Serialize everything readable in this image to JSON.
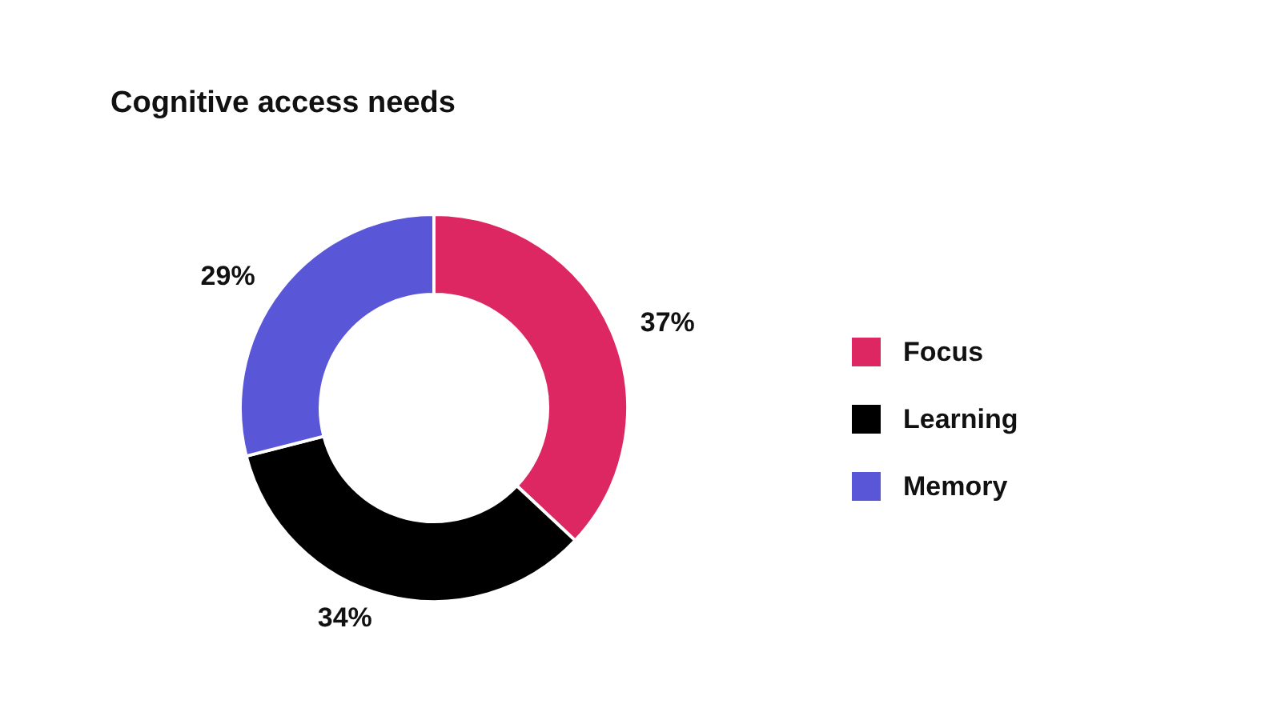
{
  "chart_data": {
    "type": "donut",
    "title": "Cognitive access needs",
    "categories": [
      "Focus",
      "Learning",
      "Memory"
    ],
    "values": [
      37,
      34,
      29
    ],
    "colors": [
      "#dd2763",
      "#000000",
      "#5a56d8"
    ],
    "value_labels": [
      "37%",
      "34%",
      "29%"
    ],
    "legend": "right"
  }
}
